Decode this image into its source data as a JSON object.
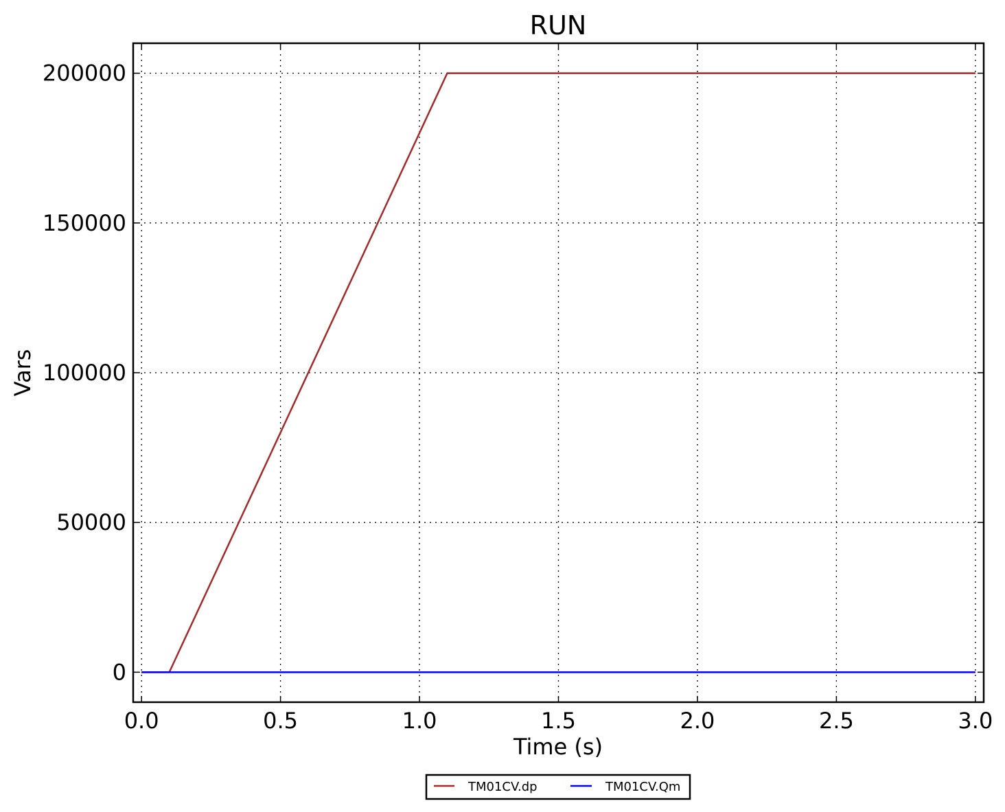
{
  "chart_data": {
    "type": "line",
    "title": "RUN",
    "xlabel": "Time (s)",
    "ylabel": "Vars",
    "xlim": [
      -0.03,
      3.03
    ],
    "ylim": [
      -10000,
      210000
    ],
    "xticks": [
      0.0,
      0.5,
      1.0,
      1.5,
      2.0,
      2.5,
      3.0
    ],
    "xtick_labels": [
      "0.0",
      "0.5",
      "1.0",
      "1.5",
      "2.0",
      "2.5",
      "3.0"
    ],
    "yticks": [
      0,
      50000,
      100000,
      150000,
      200000
    ],
    "ytick_labels": [
      "0",
      "50000",
      "100000",
      "150000",
      "200000"
    ],
    "grid": true,
    "legend_position": "bottom-center",
    "series": [
      {
        "name": "TM01CV.dp",
        "color": "#a52a2a",
        "x": [
          0.0,
          0.1,
          1.1,
          3.0
        ],
        "y": [
          0,
          0,
          200000,
          200000
        ]
      },
      {
        "name": "TM01CV.Qm",
        "color": "#0000ff",
        "x": [
          0.0,
          3.0
        ],
        "y": [
          0,
          0
        ]
      }
    ]
  }
}
